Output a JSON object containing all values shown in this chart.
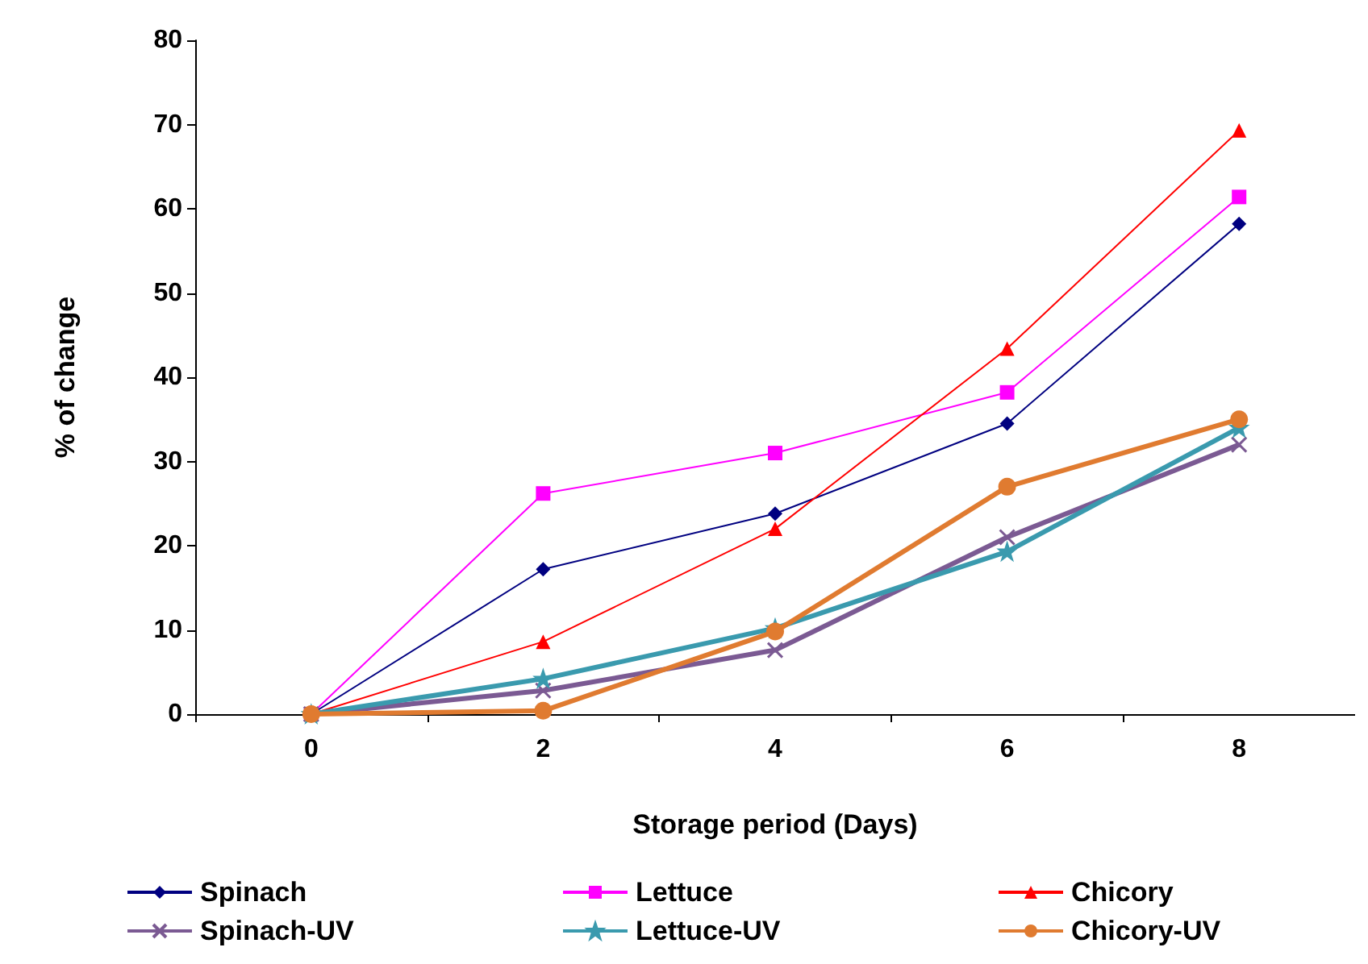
{
  "chart_data": {
    "type": "line",
    "xlabel": "Storage period (Days)",
    "ylabel": "% of change",
    "categories": [
      "0",
      "2",
      "4",
      "6",
      "8"
    ],
    "ylim": [
      0,
      80
    ],
    "yticks": [
      0,
      10,
      20,
      30,
      40,
      50,
      60,
      70,
      80
    ],
    "grid": false,
    "legend": "bottom",
    "series": [
      {
        "name": "Spinach",
        "color": "#000080",
        "marker": "diamond",
        "values": [
          0,
          17.2,
          23.8,
          34.5,
          58.2
        ]
      },
      {
        "name": "Lettuce",
        "color": "#ff00ff",
        "marker": "square",
        "values": [
          0,
          26.2,
          31,
          38.2,
          61.4
        ]
      },
      {
        "name": "Chicory",
        "color": "#ff0000",
        "marker": "triangle",
        "values": [
          0,
          8.6,
          22,
          43.4,
          69.3
        ]
      },
      {
        "name": "Spinach-UV",
        "color": "#7b5a93",
        "marker": "cross",
        "values": [
          0,
          2.8,
          7.6,
          21,
          32
        ]
      },
      {
        "name": "Lettuce-UV",
        "color": "#3a9aae",
        "marker": "star",
        "values": [
          0,
          4.2,
          10.2,
          19.3,
          34
        ]
      },
      {
        "name": "Chicory-UV",
        "color": "#e07b30",
        "marker": "circle",
        "values": [
          0,
          0.4,
          9.8,
          27,
          35
        ]
      }
    ]
  }
}
